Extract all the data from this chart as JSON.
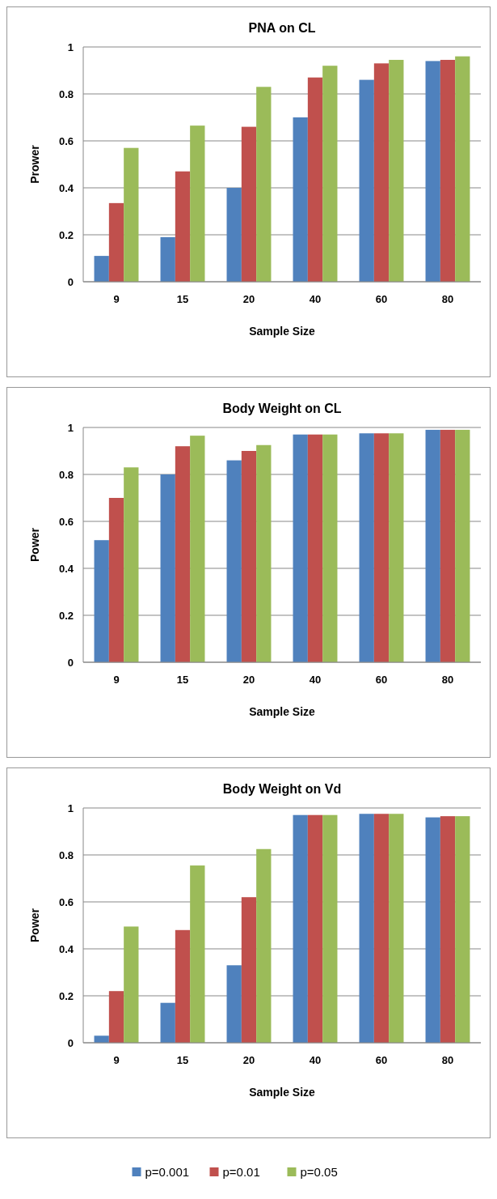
{
  "chart_data": [
    {
      "type": "bar",
      "title": "PNA on CL",
      "xlabel": "Sample Size",
      "ylabel": "Prower",
      "categories": [
        "9",
        "15",
        "20",
        "40",
        "60",
        "80"
      ],
      "ylim": [
        0,
        1
      ],
      "yticks": [
        0,
        0.2,
        0.4,
        0.6,
        0.8,
        1
      ],
      "grid": "y",
      "legend": false,
      "series": [
        {
          "color": "#4f81bd",
          "values": [
            0.11,
            0.19,
            0.4,
            0.7,
            0.86,
            0.94
          ]
        },
        {
          "color": "#c0504d",
          "values": [
            0.335,
            0.47,
            0.66,
            0.87,
            0.93,
            0.945
          ]
        },
        {
          "color": "#9bbb59",
          "values": [
            0.57,
            0.665,
            0.83,
            0.92,
            0.945,
            0.96
          ]
        }
      ]
    },
    {
      "type": "bar",
      "title": "Body Weight on CL",
      "xlabel": "Sample Size",
      "ylabel": "Power",
      "categories": [
        "9",
        "15",
        "20",
        "40",
        "60",
        "80"
      ],
      "ylim": [
        0,
        1
      ],
      "yticks": [
        0,
        0.2,
        0.4,
        0.6,
        0.8,
        1
      ],
      "grid": "y",
      "legend": false,
      "series": [
        {
          "color": "#4f81bd",
          "values": [
            0.52,
            0.8,
            0.86,
            0.97,
            0.975,
            0.99
          ]
        },
        {
          "color": "#c0504d",
          "values": [
            0.7,
            0.92,
            0.9,
            0.97,
            0.975,
            0.99
          ]
        },
        {
          "color": "#9bbb59",
          "values": [
            0.83,
            0.965,
            0.925,
            0.97,
            0.975,
            0.99
          ]
        }
      ]
    },
    {
      "type": "bar",
      "title": "Body Weight on Vd",
      "xlabel": "Sample Size",
      "ylabel": "Power",
      "categories": [
        "9",
        "15",
        "20",
        "40",
        "60",
        "80"
      ],
      "ylim": [
        0,
        1
      ],
      "yticks": [
        0,
        0.2,
        0.4,
        0.6,
        0.8,
        1
      ],
      "grid": "y",
      "legend": "bottom",
      "series": [
        {
          "name": "p=0.001",
          "color": "#4f81bd",
          "values": [
            0.03,
            0.17,
            0.33,
            0.97,
            0.975,
            0.96
          ]
        },
        {
          "name": "p=0.01",
          "color": "#c0504d",
          "values": [
            0.22,
            0.48,
            0.62,
            0.97,
            0.975,
            0.965
          ]
        },
        {
          "name": "p=0.05",
          "color": "#9bbb59",
          "values": [
            0.495,
            0.755,
            0.825,
            0.97,
            0.975,
            0.965
          ]
        }
      ]
    }
  ]
}
